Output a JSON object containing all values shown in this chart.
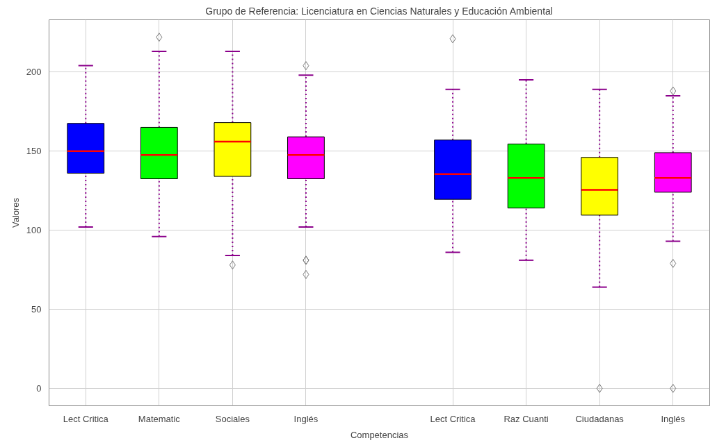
{
  "chart_data": {
    "type": "box",
    "title": "Grupo de Referencia: Licenciatura en Ciencias Naturales y Educación Ambiental",
    "xlabel": "Competencias",
    "ylabel": "Valores",
    "categories": [
      "Lect Critica",
      "Matematic",
      "Sociales",
      "Inglés",
      null,
      "Lect Critica",
      "Raz Cuanti",
      "Ciudadanas",
      "Inglés"
    ],
    "colors": [
      "#0000ff",
      "#00ff00",
      "#ffff00",
      "#ff00ff",
      null,
      "#0000ff",
      "#00ff00",
      "#ffff00",
      "#ff00ff"
    ],
    "boxes": [
      {
        "low": 102,
        "q1": 136,
        "median": 150,
        "q3": 167.5,
        "high": 204
      },
      {
        "low": 96,
        "q1": 132.5,
        "median": 147.5,
        "q3": 165,
        "high": 213,
        "outliers": [
          222
        ]
      },
      {
        "low": 84,
        "q1": 134,
        "median": 156,
        "q3": 168,
        "high": 213,
        "outliers": [
          78
        ]
      },
      {
        "low": 102,
        "q1": 132.5,
        "median": 147.5,
        "q3": 159,
        "high": 198,
        "outliers": [
          204,
          81,
          81,
          72
        ]
      },
      null,
      {
        "low": 86,
        "q1": 119.5,
        "median": 135.5,
        "q3": 157,
        "high": 189,
        "outliers": [
          221
        ]
      },
      {
        "low": 81,
        "q1": 114,
        "median": 133,
        "q3": 154.5,
        "high": 195
      },
      {
        "low": 64,
        "q1": 109.5,
        "median": 125.5,
        "q3": 146,
        "high": 189,
        "outliers": [
          0
        ]
      },
      {
        "low": 93,
        "q1": 124,
        "median": 133,
        "q3": 149,
        "high": 185,
        "outliers": [
          188,
          79,
          0
        ]
      }
    ],
    "ylim": [
      -11,
      233
    ],
    "yticks": [
      0,
      50,
      100,
      150,
      200
    ],
    "grid": true
  }
}
